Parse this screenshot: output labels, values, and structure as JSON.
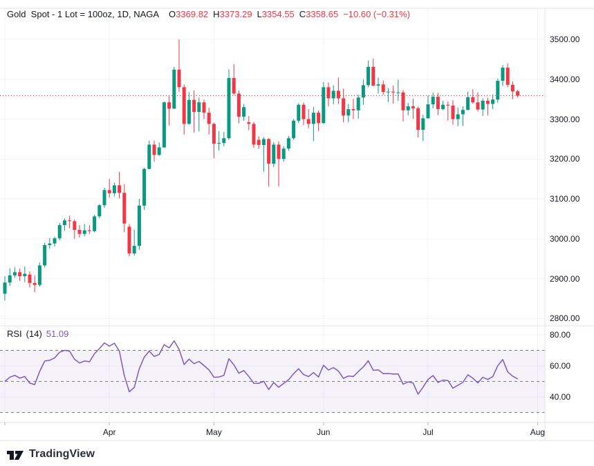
{
  "legend": {
    "symbol_title": "Gold  Spot - 1 Lot = 100oz, 1D, NAGA",
    "o_label": "O",
    "o": "3369.82",
    "h_label": "H",
    "h": "3373.29",
    "l_label": "L",
    "l": "3354.55",
    "c_label": "C",
    "c": "3358.65",
    "change": "−10.60 (−0.31%)",
    "rsi_label": "RSI",
    "rsi_params": "(14)",
    "rsi_value": "51.09"
  },
  "colors": {
    "up": "#089981",
    "down": "#F23645",
    "rsi_line": "#7E57C2",
    "rsi_band_fill": "rgba(126,87,194,0.08)",
    "dashed_level": "#787B86",
    "grid": "#F0F3FA",
    "border": "#E0E3EB",
    "text": "#131722",
    "tick": "#B2B5BE",
    "price_line": "#F23645"
  },
  "price_axis": {
    "ticks": [
      {
        "label": "3500.00",
        "value": 3500
      },
      {
        "label": "3400.00",
        "value": 3400
      },
      {
        "label": "3300.00",
        "value": 3300
      },
      {
        "label": "3200.00",
        "value": 3200
      },
      {
        "label": "3100.00",
        "value": 3100
      },
      {
        "label": "3000.00",
        "value": 3000
      },
      {
        "label": "2900.00",
        "value": 2900
      },
      {
        "label": "2800.00",
        "value": 2800
      }
    ]
  },
  "rsi_axis": {
    "ticks": [
      {
        "label": "80.00",
        "value": 80
      },
      {
        "label": "60.00",
        "value": 60
      },
      {
        "label": "40.00",
        "value": 40
      }
    ]
  },
  "time_axis": {
    "months": [
      {
        "label": "Apr",
        "index": 21
      },
      {
        "label": "May",
        "index": 42
      },
      {
        "label": "Jun",
        "index": 64
      },
      {
        "label": "Jul",
        "index": 85
      },
      {
        "label": "Aug",
        "index": 107
      }
    ],
    "extra_gridlines": [
      0
    ]
  },
  "footer": {
    "brand": "TradingView"
  },
  "chart_data": {
    "type": "candlestick",
    "title": "Gold Spot - 1 Lot = 100oz, 1D, NAGA",
    "interval": "1D",
    "ylim": [
      2781,
      3598
    ],
    "price_line_value": 3358.65,
    "legend_ohlc": {
      "open": 3369.82,
      "high": 3373.29,
      "low": 3354.55,
      "close": 3358.65,
      "change": -10.6,
      "change_pct": -0.31
    },
    "rsi": {
      "period": 14,
      "current": 51.09,
      "upper_band": 70,
      "middle_band": 50,
      "lower_band": 30,
      "axis_ticks": [
        80,
        60,
        40
      ]
    },
    "candles": [
      [
        "2025-03-03",
        2862,
        2906,
        2845,
        2890
      ],
      [
        "2025-03-04",
        2890,
        2926,
        2882,
        2908
      ],
      [
        "2025-03-05",
        2908,
        2928,
        2902,
        2916
      ],
      [
        "2025-03-06",
        2916,
        2925,
        2894,
        2906
      ],
      [
        "2025-03-07",
        2906,
        2930,
        2891,
        2912
      ],
      [
        "2025-03-10",
        2910,
        2918,
        2878,
        2889
      ],
      [
        "2025-03-11",
        2889,
        2908,
        2866,
        2884
      ],
      [
        "2025-03-12",
        2884,
        2940,
        2880,
        2933
      ],
      [
        "2025-03-13",
        2933,
        2990,
        2928,
        2984
      ],
      [
        "2025-03-14",
        2984,
        3002,
        2975,
        2988
      ],
      [
        "2025-03-17",
        2988,
        3005,
        2980,
        3001
      ],
      [
        "2025-03-18",
        3001,
        3040,
        2996,
        3034
      ],
      [
        "2025-03-19",
        3034,
        3051,
        3020,
        3046
      ],
      [
        "2025-03-20",
        3046,
        3058,
        3026,
        3044
      ],
      [
        "2025-03-21",
        3044,
        3048,
        3000,
        3022
      ],
      [
        "2025-03-24",
        3022,
        3034,
        3003,
        3012
      ],
      [
        "2025-03-25",
        3012,
        3037,
        3006,
        3021
      ],
      [
        "2025-03-26",
        3021,
        3034,
        3012,
        3019
      ],
      [
        "2025-03-27",
        3019,
        3060,
        3016,
        3056
      ],
      [
        "2025-03-28",
        3056,
        3087,
        3051,
        3084
      ],
      [
        "2025-03-31",
        3084,
        3128,
        3077,
        3122
      ],
      [
        "2025-04-01",
        3122,
        3150,
        3103,
        3114
      ],
      [
        "2025-04-02",
        3114,
        3141,
        3106,
        3134
      ],
      [
        "2025-04-03",
        3134,
        3168,
        3101,
        3115
      ],
      [
        "2025-04-04",
        3115,
        3137,
        3016,
        3038
      ],
      [
        "2025-04-07",
        3030,
        3037,
        2956,
        2963
      ],
      [
        "2025-04-08",
        2963,
        3023,
        2958,
        2982
      ],
      [
        "2025-04-09",
        2982,
        3100,
        2972,
        3083
      ],
      [
        "2025-04-10",
        3083,
        3178,
        3072,
        3175
      ],
      [
        "2025-04-11",
        3175,
        3246,
        3174,
        3236
      ],
      [
        "2025-04-14",
        3236,
        3246,
        3193,
        3210
      ],
      [
        "2025-04-15",
        3210,
        3241,
        3208,
        3229
      ],
      [
        "2025-04-16",
        3229,
        3344,
        3228,
        3342
      ],
      [
        "2025-04-17",
        3342,
        3358,
        3284,
        3326
      ],
      [
        "2025-04-21",
        3326,
        3431,
        3326,
        3424
      ],
      [
        "2025-04-22",
        3424,
        3500,
        3368,
        3380
      ],
      [
        "2025-04-23",
        3380,
        3387,
        3261,
        3288
      ],
      [
        "2025-04-24",
        3288,
        3368,
        3286,
        3348
      ],
      [
        "2025-04-25",
        3348,
        3372,
        3266,
        3318
      ],
      [
        "2025-04-28",
        3318,
        3354,
        3269,
        3342
      ],
      [
        "2025-04-29",
        3342,
        3349,
        3300,
        3316
      ],
      [
        "2025-04-30",
        3316,
        3329,
        3261,
        3288
      ],
      [
        "2025-05-01",
        3288,
        3291,
        3202,
        3238
      ],
      [
        "2025-05-02",
        3238,
        3270,
        3221,
        3240
      ],
      [
        "2025-05-05",
        3240,
        3268,
        3232,
        3252
      ],
      [
        "2025-05-06",
        3252,
        3425,
        3248,
        3403
      ],
      [
        "2025-05-07",
        3403,
        3438,
        3360,
        3364
      ],
      [
        "2025-05-08",
        3364,
        3372,
        3289,
        3306
      ],
      [
        "2025-05-09",
        3306,
        3338,
        3296,
        3330
      ],
      [
        "2025-05-12",
        3292,
        3308,
        3272,
        3288
      ],
      [
        "2025-05-13",
        3288,
        3293,
        3228,
        3236
      ],
      [
        "2025-05-14",
        3248,
        3257,
        3225,
        3235
      ],
      [
        "2025-05-15",
        3235,
        3255,
        3168,
        3250
      ],
      [
        "2025-05-16",
        3250,
        3252,
        3131,
        3188
      ],
      [
        "2025-05-19",
        3188,
        3242,
        3180,
        3236
      ],
      [
        "2025-05-20",
        3236,
        3244,
        3131,
        3200
      ],
      [
        "2025-05-21",
        3200,
        3232,
        3193,
        3226
      ],
      [
        "2025-05-22",
        3226,
        3258,
        3220,
        3252
      ],
      [
        "2025-05-23",
        3252,
        3300,
        3248,
        3296
      ],
      [
        "2025-05-26",
        3296,
        3340,
        3290,
        3336
      ],
      [
        "2025-05-27",
        3336,
        3342,
        3285,
        3300
      ],
      [
        "2025-05-28",
        3300,
        3325,
        3277,
        3288
      ],
      [
        "2025-05-29",
        3288,
        3330,
        3245,
        3316
      ],
      [
        "2025-05-30",
        3316,
        3322,
        3270,
        3290
      ],
      [
        "2025-06-02",
        3290,
        3393,
        3288,
        3380
      ],
      [
        "2025-06-03",
        3380,
        3392,
        3332,
        3352
      ],
      [
        "2025-06-04",
        3352,
        3385,
        3337,
        3371
      ],
      [
        "2025-06-05",
        3371,
        3404,
        3338,
        3352
      ],
      [
        "2025-06-06",
        3352,
        3376,
        3292,
        3309
      ],
      [
        "2025-06-09",
        3309,
        3338,
        3292,
        3325
      ],
      [
        "2025-06-10",
        3325,
        3351,
        3300,
        3322
      ],
      [
        "2025-06-11",
        3322,
        3361,
        3301,
        3354
      ],
      [
        "2025-06-12",
        3354,
        3399,
        3336,
        3385
      ],
      [
        "2025-06-13",
        3385,
        3447,
        3380,
        3431
      ],
      [
        "2025-06-16",
        3431,
        3452,
        3382,
        3384
      ],
      [
        "2025-06-17",
        3384,
        3404,
        3365,
        3387
      ],
      [
        "2025-06-18",
        3387,
        3397,
        3361,
        3368
      ],
      [
        "2025-06-19",
        3368,
        3378,
        3343,
        3369
      ],
      [
        "2025-06-20",
        3369,
        3384,
        3339,
        3367
      ],
      [
        "2025-06-23",
        3367,
        3399,
        3346,
        3367
      ],
      [
        "2025-06-24",
        3367,
        3373,
        3294,
        3322
      ],
      [
        "2025-06-25",
        3322,
        3341,
        3309,
        3332
      ],
      [
        "2025-06-26",
        3332,
        3351,
        3300,
        3327
      ],
      [
        "2025-06-27",
        3327,
        3331,
        3254,
        3273
      ],
      [
        "2025-06-30",
        3273,
        3311,
        3245,
        3302
      ],
      [
        "2025-07-01",
        3302,
        3359,
        3301,
        3337
      ],
      [
        "2025-07-02",
        3337,
        3367,
        3327,
        3356
      ],
      [
        "2025-07-03",
        3356,
        3366,
        3310,
        3325
      ],
      [
        "2025-07-04",
        3325,
        3346,
        3322,
        3336
      ],
      [
        "2025-07-07",
        3336,
        3344,
        3296,
        3334
      ],
      [
        "2025-07-08",
        3334,
        3347,
        3286,
        3300
      ],
      [
        "2025-07-09",
        3300,
        3329,
        3282,
        3312
      ],
      [
        "2025-07-10",
        3312,
        3332,
        3283,
        3323
      ],
      [
        "2025-07-11",
        3323,
        3369,
        3322,
        3355
      ],
      [
        "2025-07-14",
        3355,
        3375,
        3339,
        3342
      ],
      [
        "2025-07-15",
        3342,
        3367,
        3319,
        3324
      ],
      [
        "2025-07-16",
        3324,
        3352,
        3308,
        3346
      ],
      [
        "2025-07-17",
        3346,
        3354,
        3309,
        3338
      ],
      [
        "2025-07-18",
        3338,
        3362,
        3325,
        3349
      ],
      [
        "2025-07-21",
        3349,
        3402,
        3341,
        3396
      ],
      [
        "2025-07-22",
        3396,
        3435,
        3383,
        3429
      ],
      [
        "2025-07-23",
        3429,
        3440,
        3380,
        3386
      ],
      [
        "2025-07-24",
        3386,
        3395,
        3350,
        3369.25
      ],
      [
        "2025-07-25",
        3369.82,
        3373.29,
        3354.55,
        3358.65
      ]
    ]
  }
}
